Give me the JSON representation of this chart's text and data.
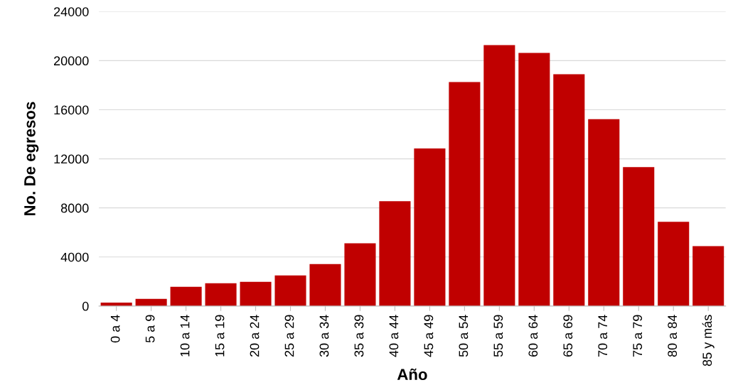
{
  "chart_data": {
    "type": "bar",
    "xlabel": "Año",
    "ylabel": "No. De egresos",
    "categories": [
      "0 a 4",
      "5 a 9",
      "10 a 14",
      "15 a 19",
      "20 a 24",
      "25 a 29",
      "30 a 34",
      "35 a 39",
      "40 a 44",
      "45 a 49",
      "50 a 54",
      "55 a 59",
      "60 a 64",
      "65 a 69",
      "70 a 74",
      "75 a 79",
      "80 a 84",
      "85 y más"
    ],
    "values": [
      290,
      580,
      1570,
      1860,
      1980,
      2500,
      3430,
      5110,
      8540,
      12840,
      18250,
      21270,
      20630,
      18890,
      15230,
      11330,
      6860,
      4880
    ],
    "color": "#c00000",
    "ylim": [
      0,
      24000
    ],
    "yticks": [
      0,
      4000,
      8000,
      12000,
      16000,
      20000,
      24000
    ],
    "grid": "y"
  }
}
